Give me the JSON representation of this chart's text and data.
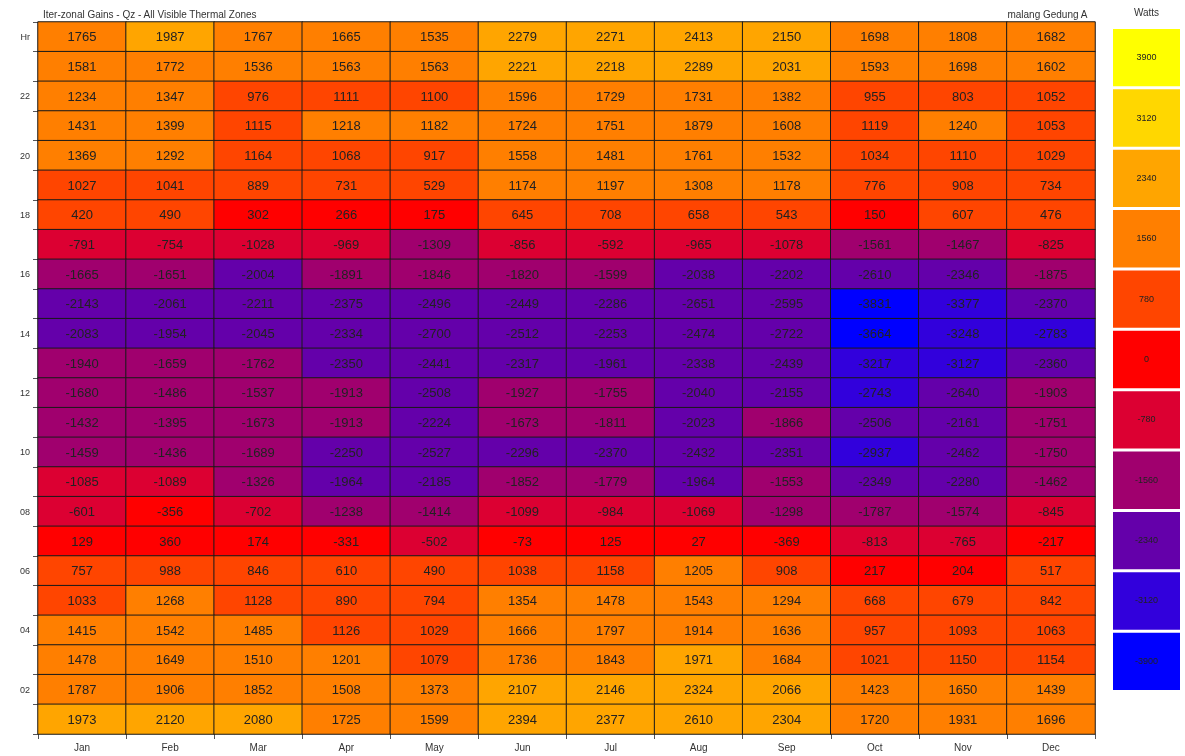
{
  "chart_data": {
    "type": "heatmap",
    "title": "Iter-zonal Gains - Qz - All Visible Thermal Zones",
    "subtitle": "malang Gedung A",
    "clabel": "Watts",
    "categories": [
      "Jan",
      "Feb",
      "Mar",
      "Apr",
      "May",
      "Jun",
      "Jul",
      "Aug",
      "Sep",
      "Oct",
      "Nov",
      "Dec"
    ],
    "y_categories": [
      "Hr",
      null,
      "22",
      null,
      "20",
      null,
      "18",
      null,
      "16",
      null,
      "14",
      null,
      "12",
      null,
      "10",
      null,
      "08",
      null,
      "06",
      null,
      "04",
      null,
      "02",
      null
    ],
    "cells": [
      [
        1765,
        1987,
        1767,
        1665,
        1535,
        2279,
        2271,
        2413,
        2150,
        1698,
        1808,
        1682
      ],
      [
        1581,
        1772,
        1536,
        1563,
        1563,
        2221,
        2218,
        2289,
        2031,
        1593,
        1698,
        1602
      ],
      [
        1234,
        1347,
        976,
        1111,
        1100,
        1596,
        1729,
        1731,
        1382,
        955,
        803,
        1052
      ],
      [
        1431,
        1399,
        1115,
        1218,
        1182,
        1724,
        1751,
        1879,
        1608,
        1119,
        1240,
        1053
      ],
      [
        1369,
        1292,
        1164,
        1068,
        917,
        1558,
        1481,
        1761,
        1532,
        1034,
        1110,
        1029
      ],
      [
        1027,
        1041,
        889,
        731,
        529,
        1174,
        1197,
        1308,
        1178,
        776,
        908,
        734
      ],
      [
        420,
        490,
        302,
        266,
        175,
        645,
        708,
        658,
        543,
        150,
        607,
        476
      ],
      [
        -791,
        -754,
        -1028,
        -969,
        -1309,
        -856,
        -592,
        -965,
        -1078,
        -1561,
        -1467,
        -825
      ],
      [
        -1665,
        -1651,
        -2004,
        -1891,
        -1846,
        -1820,
        -1599,
        -2038,
        -2202,
        -2610,
        -2346,
        -1875
      ],
      [
        -2143,
        -2061,
        -2211,
        -2375,
        -2496,
        -2449,
        -2286,
        -2651,
        -2595,
        -3831,
        -3377,
        -2370
      ],
      [
        -2083,
        -1954,
        -2045,
        -2334,
        -2700,
        -2512,
        -2253,
        -2474,
        -2722,
        -3664,
        -3248,
        -2783
      ],
      [
        -1940,
        -1659,
        -1762,
        -2350,
        -2441,
        -2317,
        -1961,
        -2338,
        -2439,
        -3217,
        -3127,
        -2360
      ],
      [
        -1680,
        -1486,
        -1537,
        -1913,
        -2508,
        -1927,
        -1755,
        -2040,
        -2155,
        -2743,
        -2640,
        -1903
      ],
      [
        -1432,
        -1395,
        -1673,
        -1913,
        -2224,
        -1673,
        -1811,
        -2023,
        -1866,
        -2506,
        -2161,
        -1751
      ],
      [
        -1459,
        -1436,
        -1689,
        -2250,
        -2527,
        -2296,
        -2370,
        -2432,
        -2351,
        -2937,
        -2462,
        -1750
      ],
      [
        -1085,
        -1089,
        -1326,
        -1964,
        -2185,
        -1852,
        -1779,
        -1964,
        -1553,
        -2349,
        -2280,
        -1462
      ],
      [
        -601,
        -356,
        -702,
        -1238,
        -1414,
        -1099,
        -984,
        -1069,
        -1298,
        -1787,
        -1574,
        -845
      ],
      [
        129,
        360,
        174,
        -331,
        -502,
        -73,
        125,
        27,
        -369,
        -813,
        -765,
        -217
      ],
      [
        757,
        988,
        846,
        610,
        490,
        1038,
        1158,
        1205,
        908,
        217,
        204,
        517
      ],
      [
        1033,
        1268,
        1128,
        890,
        794,
        1354,
        1478,
        1543,
        1294,
        668,
        679,
        842
      ],
      [
        1415,
        1542,
        1485,
        1126,
        1029,
        1666,
        1797,
        1914,
        1636,
        957,
        1093,
        1063
      ],
      [
        1478,
        1649,
        1510,
        1201,
        1079,
        1736,
        1843,
        1971,
        1684,
        1021,
        1150,
        1154
      ],
      [
        1787,
        1906,
        1852,
        1508,
        1373,
        2107,
        2146,
        2324,
        2066,
        1423,
        1650,
        1439
      ],
      [
        1973,
        2120,
        2080,
        1725,
        1599,
        2394,
        2377,
        2610,
        2304,
        1720,
        1931,
        1696
      ]
    ],
    "clim": [
      -3900,
      3900
    ],
    "cticks": [
      -3900,
      -3120,
      -2340,
      -1560,
      -780,
      0,
      780,
      1560,
      2340,
      3120,
      3900
    ],
    "data_labels": true,
    "grid": false
  }
}
